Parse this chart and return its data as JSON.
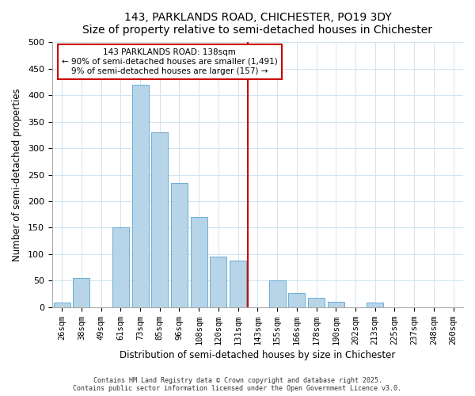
{
  "title": "143, PARKLANDS ROAD, CHICHESTER, PO19 3DY",
  "subtitle": "Size of property relative to semi-detached houses in Chichester",
  "xlabel": "Distribution of semi-detached houses by size in Chichester",
  "ylabel": "Number of semi-detached properties",
  "bin_labels": [
    "26sqm",
    "38sqm",
    "49sqm",
    "61sqm",
    "73sqm",
    "85sqm",
    "96sqm",
    "108sqm",
    "120sqm",
    "131sqm",
    "143sqm",
    "155sqm",
    "166sqm",
    "178sqm",
    "190sqm",
    "202sqm",
    "213sqm",
    "225sqm",
    "237sqm",
    "248sqm",
    "260sqm"
  ],
  "bar_values": [
    8,
    55,
    0,
    150,
    420,
    330,
    235,
    170,
    95,
    88,
    0,
    50,
    27,
    18,
    10,
    0,
    8,
    0,
    0,
    0,
    0
  ],
  "vline_index": 10,
  "annotation_title": "143 PARKLANDS ROAD: 138sqm",
  "annotation_line1": "← 90% of semi-detached houses are smaller (1,491)",
  "annotation_line2": "9% of semi-detached houses are larger (157) →",
  "bar_color": "#b8d4e8",
  "bar_edge_color": "#6aaed6",
  "vline_color": "#cc0000",
  "annotation_box_edge_color": "#cc0000",
  "grid_color": "#d0e4f0",
  "ylim": [
    0,
    500
  ],
  "yticks": [
    0,
    50,
    100,
    150,
    200,
    250,
    300,
    350,
    400,
    450,
    500
  ],
  "footer1": "Contains HM Land Registry data © Crown copyright and database right 2025.",
  "footer2": "Contains public sector information licensed under the Open Government Licence v3.0."
}
